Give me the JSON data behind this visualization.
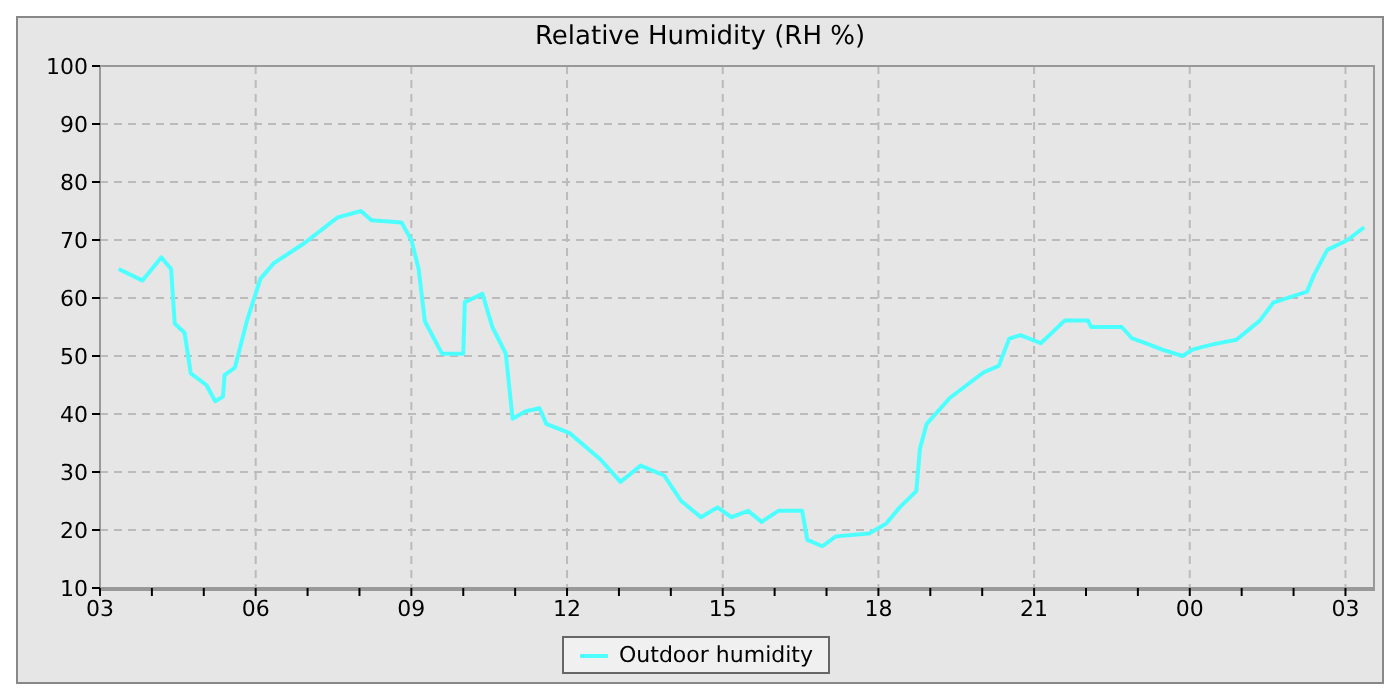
{
  "chart_data": {
    "type": "line",
    "title": "Relative Humidity (RH %)",
    "xlim": [
      3,
      27.55
    ],
    "xticks": [
      {
        "value": 3,
        "label": "03"
      },
      {
        "value": 4,
        "label": null
      },
      {
        "value": 5,
        "label": null
      },
      {
        "value": 6,
        "label": "06"
      },
      {
        "value": 7,
        "label": null
      },
      {
        "value": 8,
        "label": null
      },
      {
        "value": 9,
        "label": "09"
      },
      {
        "value": 10,
        "label": null
      },
      {
        "value": 11,
        "label": null
      },
      {
        "value": 12,
        "label": "12"
      },
      {
        "value": 13,
        "label": null
      },
      {
        "value": 14,
        "label": null
      },
      {
        "value": 15,
        "label": "15"
      },
      {
        "value": 16,
        "label": null
      },
      {
        "value": 17,
        "label": null
      },
      {
        "value": 18,
        "label": "18"
      },
      {
        "value": 19,
        "label": null
      },
      {
        "value": 20,
        "label": null
      },
      {
        "value": 21,
        "label": "21"
      },
      {
        "value": 22,
        "label": null
      },
      {
        "value": 23,
        "label": null
      },
      {
        "value": 24,
        "label": "00"
      },
      {
        "value": 25,
        "label": null
      },
      {
        "value": 26,
        "label": null
      },
      {
        "value": 27,
        "label": "03"
      }
    ],
    "ylim": [
      10,
      100
    ],
    "yticks": [
      10,
      20,
      30,
      40,
      50,
      60,
      70,
      80,
      90,
      100
    ],
    "grid": true,
    "legend": "bottom",
    "marker": "none",
    "line_style": "solid",
    "x": [
      3.36,
      3.82,
      4.18,
      4.37,
      4.44,
      4.63,
      4.75,
      5.05,
      5.22,
      5.37,
      5.4,
      5.6,
      5.83,
      6.09,
      6.35,
      6.93,
      7.58,
      8.03,
      8.23,
      8.81,
      9.0,
      9.14,
      9.26,
      9.59,
      10.0,
      10.03,
      10.37,
      10.56,
      10.82,
      10.95,
      11.21,
      11.47,
      11.6,
      12.05,
      12.64,
      13.03,
      13.42,
      13.87,
      14.2,
      14.58,
      14.9,
      15.17,
      15.49,
      15.75,
      16.07,
      16.53,
      16.63,
      16.92,
      17.18,
      17.82,
      18.15,
      18.41,
      18.73,
      18.8,
      18.93,
      19.38,
      20.03,
      20.32,
      20.52,
      20.74,
      21.13,
      21.59,
      22.04,
      22.1,
      22.69,
      22.88,
      23.21,
      23.47,
      23.86,
      24.05,
      24.44,
      24.9,
      25.35,
      25.61,
      26.26,
      26.39,
      26.65,
      27.04,
      27.36
    ],
    "series": [
      {
        "name": "Outdoor humidity",
        "color": "#4dffff",
        "values": [
          65,
          63,
          67,
          65,
          55.6,
          54,
          47,
          45,
          42.2,
          43,
          46.7,
          48,
          56,
          63.3,
          66,
          69.4,
          73.9,
          75,
          73.4,
          73,
          70,
          65,
          56,
          50.4,
          50.4,
          59.3,
          60.7,
          55,
          50.4,
          39.2,
          40.5,
          41,
          38.3,
          36.7,
          32.2,
          28.3,
          31.1,
          29.4,
          25,
          22.2,
          23.9,
          22.2,
          23.3,
          21.4,
          23.3,
          23.3,
          18.3,
          17.2,
          18.9,
          19.4,
          21.1,
          23.9,
          26.7,
          34,
          38.3,
          42.8,
          47.2,
          48.3,
          53,
          53.6,
          52.2,
          56.1,
          56.1,
          55,
          55,
          53.1,
          52,
          51.1,
          50,
          51.1,
          52,
          52.8,
          56.1,
          59.2,
          61.1,
          63.9,
          68.3,
          70,
          72.2
        ]
      }
    ]
  }
}
